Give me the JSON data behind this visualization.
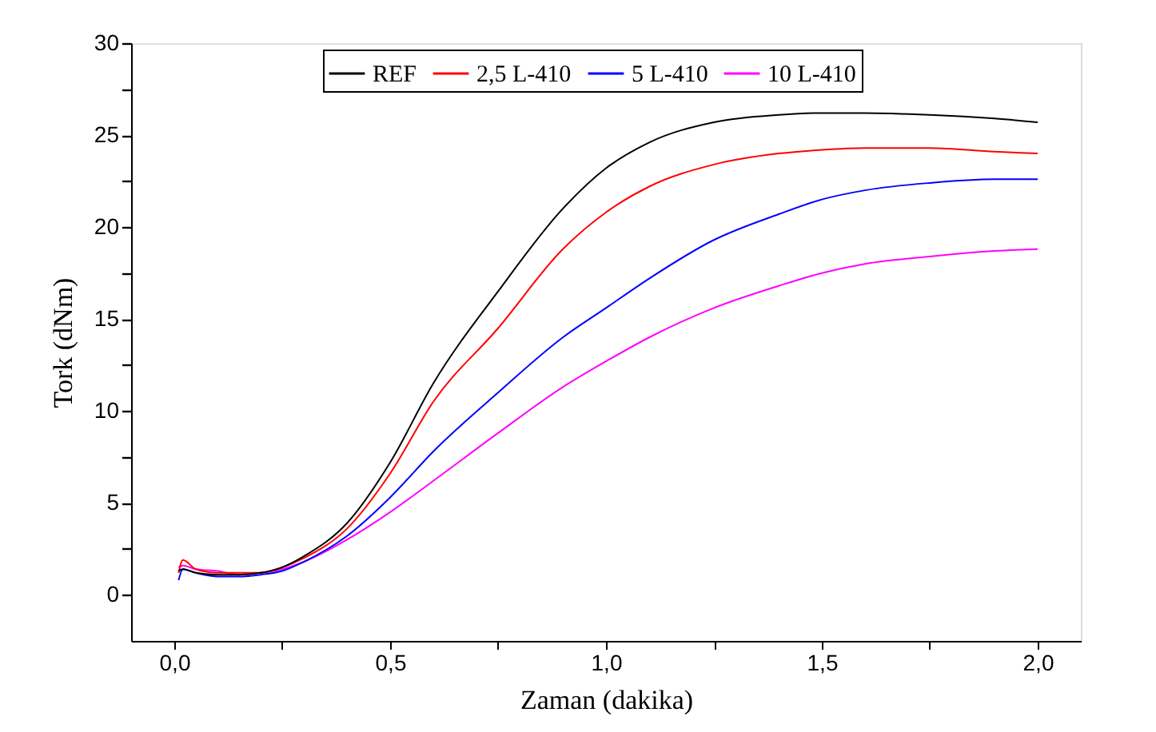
{
  "chart_data": {
    "type": "line",
    "xlabel": "Zaman (dakika)",
    "ylabel": "Tork (dNm)",
    "x": [
      0.01,
      0.02,
      0.05,
      0.1,
      0.15,
      0.2,
      0.25,
      0.3,
      0.4,
      0.5,
      0.6,
      0.75,
      0.9,
      1.0,
      1.1,
      1.25,
      1.4,
      1.5,
      1.6,
      1.75,
      1.9,
      2.0
    ],
    "series": [
      {
        "name": "REF",
        "color": "#000000",
        "values": [
          1.3,
          1.4,
          1.2,
          1.1,
          1.1,
          1.2,
          1.5,
          2.1,
          3.9,
          7.2,
          11.5,
          16.5,
          21.0,
          23.2,
          24.6,
          25.7,
          26.1,
          26.2,
          26.2,
          26.1,
          25.9,
          25.7
        ]
      },
      {
        "name": "2,5 L-410",
        "color": "#ff0000",
        "values": [
          1.2,
          1.9,
          1.4,
          1.2,
          1.2,
          1.2,
          1.5,
          2.0,
          3.6,
          6.6,
          10.5,
          14.5,
          18.8,
          20.8,
          22.2,
          23.4,
          24.0,
          24.2,
          24.3,
          24.3,
          24.1,
          24.0
        ]
      },
      {
        "name": "5 L-410",
        "color": "#0000ff",
        "values": [
          0.8,
          1.4,
          1.2,
          1.0,
          1.0,
          1.1,
          1.3,
          1.8,
          3.2,
          5.3,
          7.8,
          11.0,
          14.0,
          15.6,
          17.2,
          19.3,
          20.7,
          21.5,
          22.0,
          22.4,
          22.6,
          22.6
        ]
      },
      {
        "name": "10 L-410",
        "color": "#ff00ff",
        "values": [
          1.5,
          1.6,
          1.4,
          1.3,
          1.1,
          1.2,
          1.4,
          1.8,
          3.0,
          4.5,
          6.2,
          8.8,
          11.3,
          12.7,
          14.0,
          15.6,
          16.8,
          17.5,
          18.0,
          18.4,
          18.7,
          18.8
        ]
      }
    ],
    "xlim": [
      -0.1,
      2.1
    ],
    "xticks": [
      {
        "value": 0.0,
        "label": "0,0"
      },
      {
        "value": 0.25,
        "label": null
      },
      {
        "value": 0.5,
        "label": "0,5"
      },
      {
        "value": 0.75,
        "label": null
      },
      {
        "value": 1.0,
        "label": "1,0"
      },
      {
        "value": 1.25,
        "label": null
      },
      {
        "value": 1.5,
        "label": "1,5"
      },
      {
        "value": 1.75,
        "label": null
      },
      {
        "value": 2.0,
        "label": "2,0"
      }
    ],
    "ylim": [
      -2.5,
      30
    ],
    "yticks": [
      0,
      {
        "value": 2.5,
        "label": null
      },
      5,
      {
        "value": 7.5,
        "label": null
      },
      10,
      {
        "value": 12.5,
        "label": null
      },
      15,
      {
        "value": 17.5,
        "label": null
      },
      20,
      {
        "value": 22.5,
        "label": null
      },
      25,
      {
        "value": 27.5,
        "label": null
      },
      30
    ],
    "legend": "top",
    "grid": false,
    "marker": "none",
    "line_style": "solid"
  }
}
